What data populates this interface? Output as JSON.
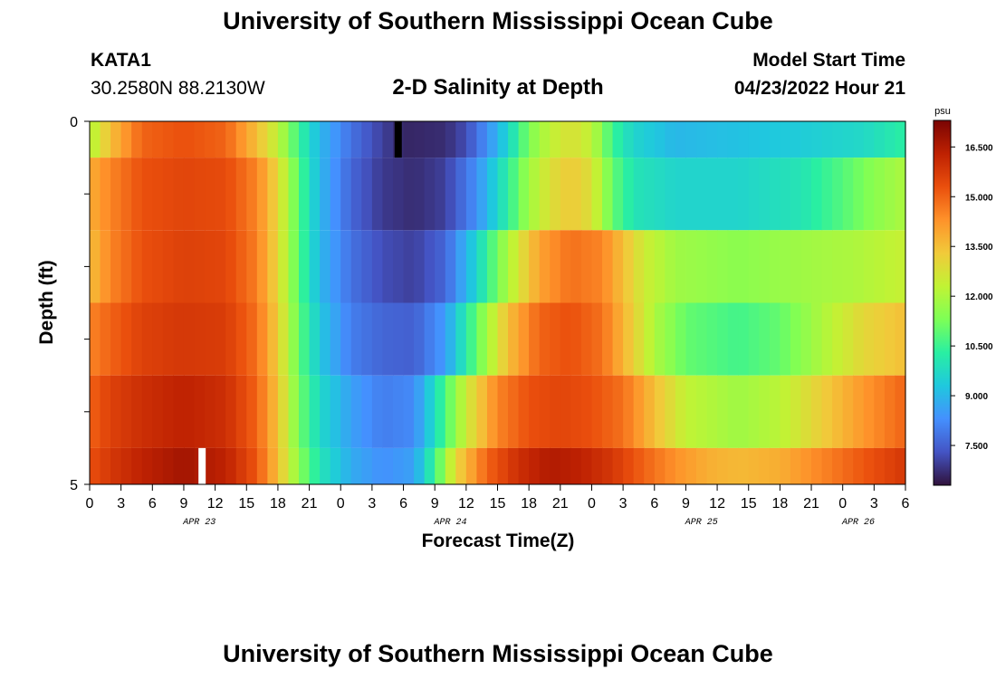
{
  "header": {
    "title": "University of Southern Mississippi Ocean Cube",
    "station_id": "KATA1",
    "station_coords": "30.2580N  88.2130W",
    "subtitle": "2-D Salinity at Depth",
    "model_start_label": "Model Start Time",
    "model_start_value": "04/23/2022 Hour 21"
  },
  "footer": {
    "title": "University of Southern Mississippi Ocean Cube"
  },
  "chart_data": {
    "type": "heatmap",
    "title": "2-D Salinity at Depth",
    "xlabel": "Forecast Time(Z)",
    "ylabel": "Depth (ft)",
    "ylim": [
      0,
      5
    ],
    "y_tick_labels": [
      "0",
      "5"
    ],
    "x_hours": [
      0,
      78
    ],
    "x_tick_labels": [
      "0",
      "3",
      "6",
      "9",
      "12",
      "15",
      "18",
      "21",
      "0",
      "3",
      "6",
      "9",
      "12",
      "15",
      "18",
      "21",
      "0",
      "3",
      "6",
      "9",
      "12",
      "15",
      "18",
      "21",
      "0",
      "3",
      "6"
    ],
    "date_labels": [
      {
        "label": "APR 23",
        "hour": 10.5
      },
      {
        "label": "APR 24",
        "hour": 34.5
      },
      {
        "label": "APR 25",
        "hour": 58.5
      },
      {
        "label": "APR 26",
        "hour": 73.5
      }
    ],
    "colorbar": {
      "unit": "psu",
      "range": [
        6.3,
        17.3
      ],
      "ticks": [
        "16.500",
        "15.000",
        "13.500",
        "12.000",
        "10.500",
        "9.000",
        "7.500"
      ],
      "colors": [
        "#30123b",
        "#4454c4",
        "#4490fe",
        "#1fc8de",
        "#29efa2",
        "#7dff56",
        "#c1f334",
        "#f1ca3a",
        "#fe922a",
        "#ea4f0d",
        "#be2102",
        "#7a0403"
      ]
    },
    "depth_layers": [
      {
        "top": 0,
        "bottom": 0.5,
        "keyframes": [
          [
            0,
            12.0
          ],
          [
            2,
            13.5
          ],
          [
            5,
            15.0
          ],
          [
            9,
            15.3
          ],
          [
            13,
            15.0
          ],
          [
            16,
            13.5
          ],
          [
            18,
            12.3
          ],
          [
            20,
            10.5
          ],
          [
            22,
            9.0
          ],
          [
            25,
            7.8
          ],
          [
            28,
            7.0
          ],
          [
            30,
            6.6
          ],
          [
            34,
            6.7
          ],
          [
            36,
            7.2
          ],
          [
            38,
            8.3
          ],
          [
            40,
            9.6
          ],
          [
            42,
            11.3
          ],
          [
            44,
            12.3
          ],
          [
            46,
            12.8
          ],
          [
            48,
            12.3
          ],
          [
            50,
            10.5
          ],
          [
            52,
            9.6
          ],
          [
            56,
            9.0
          ],
          [
            62,
            9.2
          ],
          [
            68,
            9.4
          ],
          [
            74,
            9.7
          ],
          [
            78,
            10.3
          ]
        ]
      },
      {
        "top": 0.5,
        "bottom": 1.5,
        "keyframes": [
          [
            0,
            13.8
          ],
          [
            2,
            14.5
          ],
          [
            5,
            15.3
          ],
          [
            9,
            15.5
          ],
          [
            13,
            15.4
          ],
          [
            16,
            14.5
          ],
          [
            18,
            13.0
          ],
          [
            20,
            10.8
          ],
          [
            22,
            9.0
          ],
          [
            25,
            7.6
          ],
          [
            28,
            6.9
          ],
          [
            31,
            6.7
          ],
          [
            34,
            7.0
          ],
          [
            37,
            8.3
          ],
          [
            40,
            10.3
          ],
          [
            42,
            11.8
          ],
          [
            44,
            12.8
          ],
          [
            46,
            13.3
          ],
          [
            48,
            12.8
          ],
          [
            50,
            11.0
          ],
          [
            52,
            10.0
          ],
          [
            56,
            9.6
          ],
          [
            62,
            9.6
          ],
          [
            68,
            10.0
          ],
          [
            72,
            10.8
          ],
          [
            75,
            11.5
          ],
          [
            78,
            12.0
          ]
        ]
      },
      {
        "top": 1.5,
        "bottom": 2.5,
        "keyframes": [
          [
            0,
            13.5
          ],
          [
            2,
            14.5
          ],
          [
            5,
            15.3
          ],
          [
            9,
            15.6
          ],
          [
            13,
            15.5
          ],
          [
            16,
            14.6
          ],
          [
            18,
            13.0
          ],
          [
            20,
            10.8
          ],
          [
            22,
            9.0
          ],
          [
            25,
            7.8
          ],
          [
            28,
            7.2
          ],
          [
            31,
            7.0
          ],
          [
            34,
            7.6
          ],
          [
            37,
            9.6
          ],
          [
            40,
            12.0
          ],
          [
            43,
            14.0
          ],
          [
            46,
            14.8
          ],
          [
            49,
            14.5
          ],
          [
            51,
            13.5
          ],
          [
            53,
            12.5
          ],
          [
            56,
            11.8
          ],
          [
            62,
            11.5
          ],
          [
            68,
            11.8
          ],
          [
            73,
            12.0
          ],
          [
            78,
            12.4
          ]
        ]
      },
      {
        "top": 2.5,
        "bottom": 3.5,
        "keyframes": [
          [
            0,
            14.5
          ],
          [
            2,
            15.0
          ],
          [
            5,
            15.6
          ],
          [
            9,
            15.8
          ],
          [
            13,
            15.7
          ],
          [
            16,
            14.8
          ],
          [
            18,
            13.2
          ],
          [
            20,
            11.0
          ],
          [
            22,
            9.3
          ],
          [
            25,
            8.0
          ],
          [
            28,
            7.6
          ],
          [
            31,
            7.5
          ],
          [
            34,
            8.5
          ],
          [
            37,
            11.0
          ],
          [
            40,
            13.5
          ],
          [
            43,
            15.0
          ],
          [
            46,
            15.3
          ],
          [
            49,
            14.8
          ],
          [
            51,
            13.7
          ],
          [
            54,
            12.0
          ],
          [
            57,
            11.0
          ],
          [
            62,
            10.6
          ],
          [
            66,
            11.0
          ],
          [
            70,
            12.0
          ],
          [
            74,
            13.0
          ],
          [
            78,
            13.5
          ]
        ]
      },
      {
        "top": 3.5,
        "bottom": 4.5,
        "keyframes": [
          [
            0,
            15.0
          ],
          [
            2,
            15.6
          ],
          [
            5,
            16.0
          ],
          [
            9,
            16.3
          ],
          [
            13,
            16.0
          ],
          [
            16,
            15.0
          ],
          [
            18,
            13.4
          ],
          [
            20,
            11.2
          ],
          [
            22,
            9.7
          ],
          [
            25,
            8.6
          ],
          [
            28,
            8.0
          ],
          [
            31,
            8.2
          ],
          [
            33,
            9.8
          ],
          [
            36,
            12.5
          ],
          [
            39,
            14.5
          ],
          [
            42,
            15.3
          ],
          [
            45,
            15.5
          ],
          [
            48,
            15.3
          ],
          [
            51,
            14.8
          ],
          [
            54,
            13.5
          ],
          [
            57,
            12.3
          ],
          [
            62,
            11.8
          ],
          [
            66,
            12.2
          ],
          [
            70,
            13.2
          ],
          [
            74,
            14.2
          ],
          [
            78,
            15.0
          ]
        ]
      },
      {
        "top": 4.5,
        "bottom": 5.0,
        "keyframes": [
          [
            0,
            15.3
          ],
          [
            2,
            15.8
          ],
          [
            5,
            16.3
          ],
          [
            9,
            16.7
          ],
          [
            13,
            16.3
          ],
          [
            16,
            15.2
          ],
          [
            18,
            13.5
          ],
          [
            20,
            11.5
          ],
          [
            22,
            10.0
          ],
          [
            25,
            8.8
          ],
          [
            28,
            8.3
          ],
          [
            31,
            8.6
          ],
          [
            33,
            10.5
          ],
          [
            35,
            13.0
          ],
          [
            38,
            15.0
          ],
          [
            41,
            16.0
          ],
          [
            44,
            16.5
          ],
          [
            47,
            16.3
          ],
          [
            50,
            15.8
          ],
          [
            53,
            15.0
          ],
          [
            56,
            14.3
          ],
          [
            59,
            13.8
          ],
          [
            62,
            13.6
          ],
          [
            66,
            13.8
          ],
          [
            70,
            14.5
          ],
          [
            74,
            15.2
          ],
          [
            78,
            15.8
          ]
        ]
      }
    ],
    "markers": [
      {
        "name": "black-marker",
        "hour": 29.5,
        "depth_top": 0,
        "depth_bottom": 0.5,
        "color": "#000000"
      },
      {
        "name": "white-marker",
        "hour": 10.75,
        "depth_top": 4.5,
        "depth_bottom": 5.0,
        "color": "#ffffff"
      }
    ]
  }
}
